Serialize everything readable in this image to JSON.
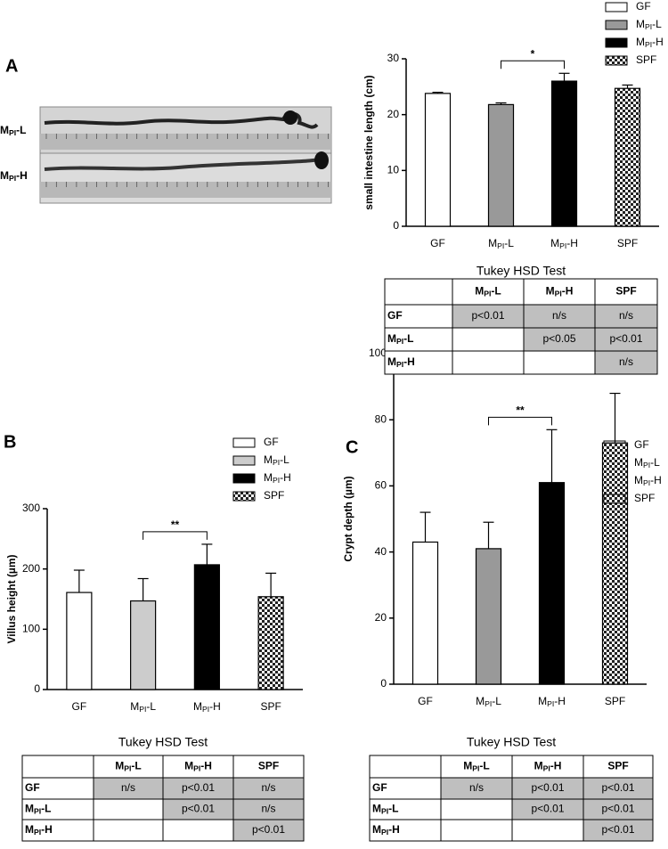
{
  "chart_data": [
    {
      "type": "bar",
      "panel": "A",
      "y_label": "small intestine length (cm)",
      "categories": [
        "GF",
        "MPI-L",
        "MPI-H",
        "SPF"
      ],
      "values": [
        23.8,
        21.8,
        26.0,
        24.7
      ],
      "errors": [
        0.2,
        0.3,
        1.4,
        0.6
      ],
      "colors": [
        "#ffffff",
        "#999999",
        "#000000",
        "checker"
      ],
      "ylim": [
        0,
        30
      ],
      "yticks": [
        0,
        10,
        20,
        30
      ],
      "significance": {
        "label": "*",
        "between": [
          "MPI-L",
          "MPI-H"
        ]
      }
    },
    {
      "type": "bar",
      "panel": "B",
      "y_label": "Villus height (µm)",
      "categories": [
        "GF",
        "MPI-L",
        "MPI-H",
        "SPF"
      ],
      "values": [
        161,
        147,
        207,
        154
      ],
      "errors": [
        37,
        37,
        34,
        39
      ],
      "colors": [
        "#ffffff",
        "#cccccc",
        "#000000",
        "checker"
      ],
      "ylim": [
        0,
        300
      ],
      "yticks": [
        0,
        100,
        200,
        300
      ],
      "significance": {
        "label": "**",
        "between": [
          "MPI-L",
          "MPI-H"
        ]
      }
    },
    {
      "type": "bar",
      "panel": "C",
      "y_label": "Crypt depth (µm)",
      "categories": [
        "GF",
        "MPI-L",
        "MPI-H",
        "SPF"
      ],
      "values": [
        43,
        41,
        61,
        73
      ],
      "errors": [
        9,
        8,
        16,
        15
      ],
      "colors": [
        "#ffffff",
        "#999999",
        "#000000",
        "checker"
      ],
      "ylim": [
        0,
        100
      ],
      "yticks": [
        0,
        20,
        40,
        60,
        80,
        100
      ],
      "significance": {
        "label": "**",
        "between": [
          "MPI-L",
          "MPI-H"
        ]
      }
    }
  ],
  "photo": {
    "labels": [
      "MPI-L",
      "MPI-H"
    ]
  },
  "tables": [
    {
      "title": "Tukey HSD Test",
      "columns": [
        "MPI-L",
        "MPI-H",
        "SPF"
      ],
      "rows": [
        {
          "label": "GF",
          "cells": [
            "p<0.01",
            "n/s",
            "n/s"
          ]
        },
        {
          "label": "MPI-L",
          "cells": [
            null,
            "p<0.05",
            "p<0.01"
          ]
        },
        {
          "label": "MPI-H",
          "cells": [
            null,
            null,
            "n/s"
          ]
        }
      ]
    },
    {
      "title": "Tukey HSD Test",
      "columns": [
        "MPI-L",
        "MPI-H",
        "SPF"
      ],
      "rows": [
        {
          "label": "GF",
          "cells": [
            "n/s",
            "p<0.01",
            "n/s"
          ]
        },
        {
          "label": "MPI-L",
          "cells": [
            null,
            "p<0.01",
            "n/s"
          ]
        },
        {
          "label": "MPI-H",
          "cells": [
            null,
            null,
            "p<0.01"
          ]
        }
      ]
    },
    {
      "title": "Tukey HSD Test",
      "columns": [
        "MPI-L",
        "MPI-H",
        "SPF"
      ],
      "rows": [
        {
          "label": "GF",
          "cells": [
            "n/s",
            "p<0.01",
            "p<0.01"
          ]
        },
        {
          "label": "MPI-L",
          "cells": [
            null,
            "p<0.01",
            "p<0.01"
          ]
        },
        {
          "label": "MPI-H",
          "cells": [
            null,
            null,
            "p<0.01"
          ]
        }
      ]
    }
  ]
}
